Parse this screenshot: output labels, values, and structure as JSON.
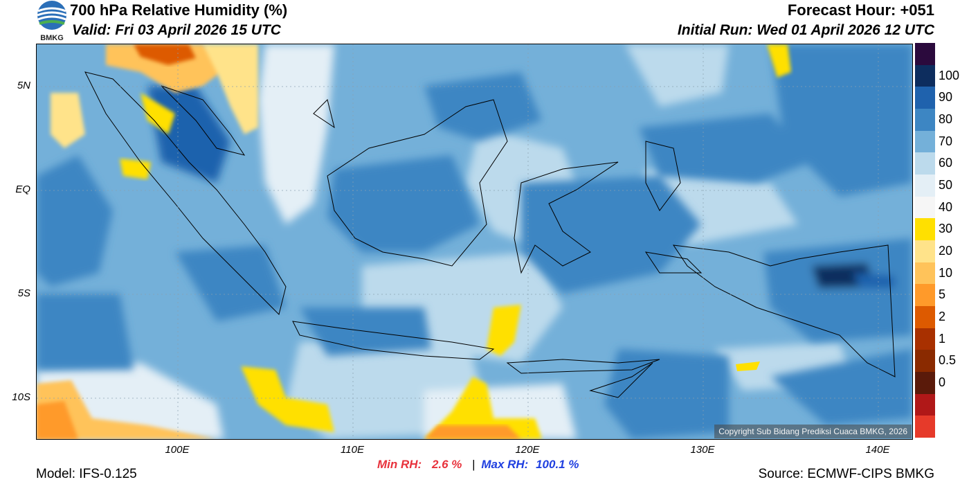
{
  "header": {
    "title": "700 hPa Relative Humidity (%)",
    "valid": "Valid: Fri 03 April 2026 15 UTC",
    "forecast_hour": "Forecast Hour: +051",
    "initial_run": "Initial Run: Wed 01 April 2026 12 UTC",
    "logo_text": "BMKG"
  },
  "map": {
    "lat_labels": [
      "5N",
      "EQ",
      "5S",
      "10S"
    ],
    "lon_labels": [
      "100E",
      "110E",
      "120E",
      "130E",
      "140E"
    ],
    "copyright": "Copyright Sub Bidang Prediksi Cuaca BMKG, 2026"
  },
  "colorbar": {
    "labels": [
      "100",
      "90",
      "80",
      "70",
      "60",
      "50",
      "40",
      "30",
      "20",
      "10",
      "5",
      "2",
      "1",
      "0.5",
      "0"
    ],
    "colors": [
      "#2b0a3d",
      "#0d2d5e",
      "#1f62ad",
      "#3d86c3",
      "#74b0d9",
      "#bcdaec",
      "#e4eff6",
      "#f6f6f6",
      "#ffe000",
      "#ffe38a",
      "#ffc35a",
      "#ff9a2a",
      "#dd5a00",
      "#a83000",
      "#8a2a00",
      "#5a1a0a",
      "#b01818",
      "#e63a2a"
    ]
  },
  "stats": {
    "min_label": "Min RH:",
    "min_value": "2.6 %",
    "max_label": "Max RH:",
    "max_value": "100.1 %"
  },
  "footer": {
    "model": "Model: IFS-0.125",
    "source": "Source: ECMWF-CIPS BMKG"
  }
}
